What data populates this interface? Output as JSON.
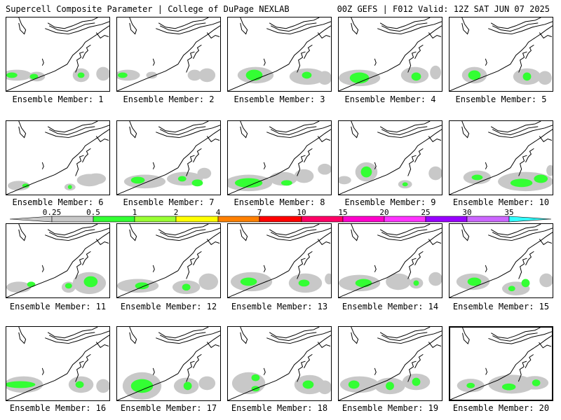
{
  "header": {
    "left": "Supercell Composite Parameter | College of DuPage NEXLAB",
    "right": "00Z GEFS | F012 Valid: 12Z SAT JUN 07 2025"
  },
  "colors": {
    "gray": "#c8c8c8",
    "green": "#33ff33",
    "lightgreen": "#99ff33",
    "yellow": "#ffff00",
    "orange": "#ff8000",
    "red": "#ff0000",
    "crimson": "#ff0066",
    "magenta": "#ff00cc",
    "violet": "#ff33ff",
    "purple": "#9900ff",
    "lavender": "#cc66ff",
    "cyan": "#33ffff"
  },
  "colorbar": {
    "labels": [
      "0.25",
      "0.5",
      "1",
      "2",
      "4",
      "7",
      "10",
      "15",
      "20",
      "25",
      "30",
      "35"
    ],
    "segments": [
      {
        "from": "0.25",
        "to": "0.5",
        "color": "#c8c8c8"
      },
      {
        "from": "0.5",
        "to": "1",
        "color": "#33ff33"
      },
      {
        "from": "1",
        "to": "2",
        "color": "#99ff33"
      },
      {
        "from": "2",
        "to": "4",
        "color": "#ffff00"
      },
      {
        "from": "4",
        "to": "7",
        "color": "#ff8000"
      },
      {
        "from": "7",
        "to": "10",
        "color": "#ff0000"
      },
      {
        "from": "10",
        "to": "15",
        "color": "#ff0066"
      },
      {
        "from": "15",
        "to": "20",
        "color": "#ff00cc"
      },
      {
        "from": "20",
        "to": "25",
        "color": "#ff33ff"
      },
      {
        "from": "25",
        "to": "30",
        "color": "#9900ff"
      },
      {
        "from": "30",
        "to": "35",
        "color": "#cc66ff"
      },
      {
        "from": "35",
        "to": "",
        "color": "#33ffff"
      }
    ]
  },
  "members": [
    {
      "label": "Ensemble Member: 1"
    },
    {
      "label": "Ensemble Member: 2"
    },
    {
      "label": "Ensemble Member: 3"
    },
    {
      "label": "Ensemble Member: 4"
    },
    {
      "label": "Ensemble Member: 5"
    },
    {
      "label": "Ensemble Member: 6"
    },
    {
      "label": "Ensemble Member: 7"
    },
    {
      "label": "Ensemble Member: 8"
    },
    {
      "label": "Ensemble Member: 9"
    },
    {
      "label": "Ensemble Member: 10"
    },
    {
      "label": "Ensemble Member: 11"
    },
    {
      "label": "Ensemble Member: 12"
    },
    {
      "label": "Ensemble Member: 13"
    },
    {
      "label": "Ensemble Member: 14"
    },
    {
      "label": "Ensemble Member: 15"
    },
    {
      "label": "Ensemble Member: 16"
    },
    {
      "label": "Ensemble Member: 17"
    },
    {
      "label": "Ensemble Member: 18"
    },
    {
      "label": "Ensemble Member: 19"
    },
    {
      "label": "Ensemble Member: 20",
      "highlighted": true
    }
  ]
}
